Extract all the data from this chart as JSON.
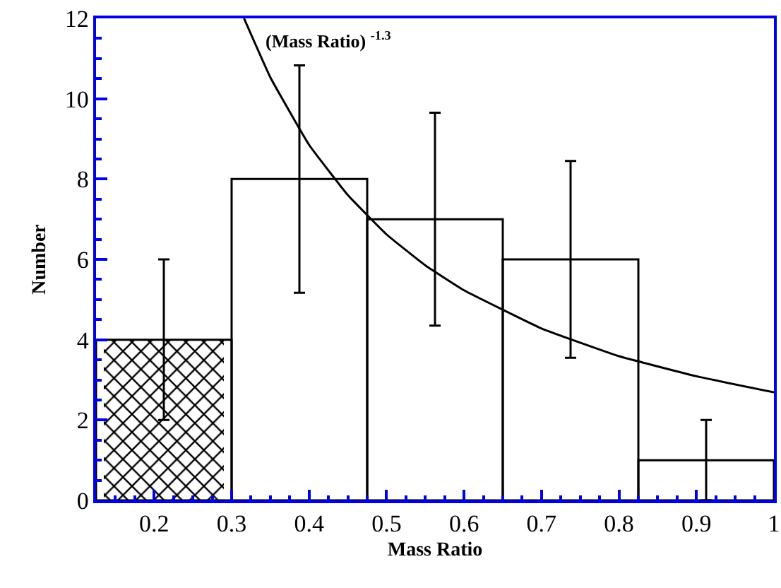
{
  "chart_data": {
    "type": "histogram",
    "xlabel": "Mass Ratio",
    "ylabel": "Number",
    "annotations": [
      "(Mass Ratio) $^{-1.3}$"
    ],
    "xlim": [
      0.125,
      1
    ],
    "xticks": [
      0.2,
      0.3,
      0.4,
      0.5,
      0.6,
      0.7,
      0.8,
      0.9,
      1
    ],
    "ylim": [
      0,
      12
    ],
    "yticks": [
      0,
      2,
      4,
      6,
      8,
      10,
      12
    ],
    "series": [
      {
        "color": "#000000",
        "bins": [
          0.125,
          0.3,
          0.475,
          0.65,
          0.825,
          1
        ],
        "values": [
          4,
          8,
          7,
          6,
          1
        ],
        "errors": [
          [
            2,
            6
          ],
          [
            5.17,
            10.83
          ],
          [
            4.35,
            9.65
          ],
          [
            3.55,
            8.45
          ],
          [
            0,
            2
          ]
        ]
      },
      {
        "color": "#000000",
        "bins": [
          0.135,
          0.29
        ],
        "values": [
          4
        ]
      },
      {
        "type": "line",
        "color": "#000000",
        "x": [
          0.316,
          0.35,
          0.4,
          0.45,
          0.5,
          0.55,
          0.6,
          0.7,
          0.8,
          0.9,
          1
        ],
        "values": [
          12,
          10.53,
          8.85,
          7.6,
          6.62,
          5.85,
          5.23,
          4.28,
          3.59,
          3.09,
          2.69
        ]
      }
    ]
  }
}
